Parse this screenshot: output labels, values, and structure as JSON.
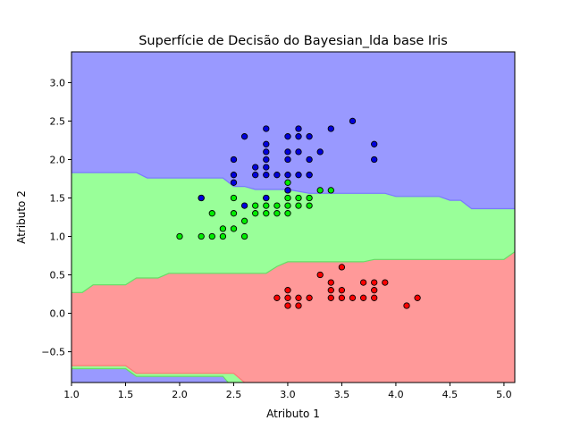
{
  "chart_data": {
    "type": "scatter",
    "title": "Superfície de Decisão do Bayesian_lda base Iris",
    "xlabel": "Atributo 1",
    "ylabel": "Atributo 2",
    "xlim": [
      1.0,
      5.1
    ],
    "ylim": [
      -0.9,
      3.4
    ],
    "xticks": [
      "1.0",
      "1.5",
      "2.0",
      "2.5",
      "3.0",
      "3.5",
      "4.0",
      "4.5",
      "5.0"
    ],
    "yticks": [
      "−0.5",
      "0.0",
      "0.5",
      "1.0",
      "1.5",
      "2.0",
      "2.5",
      "3.0"
    ],
    "region_colors": {
      "red": "#ff9999",
      "green": "#99ff99",
      "blue": "#9999ff"
    },
    "boundaries": {
      "blue_green_upper": [
        [
          1.0,
          1.83
        ],
        [
          1.6,
          1.83
        ],
        [
          1.7,
          1.76
        ],
        [
          2.4,
          1.76
        ],
        [
          2.5,
          1.65
        ],
        [
          2.6,
          1.65
        ],
        [
          2.7,
          1.61
        ],
        [
          3.0,
          1.61
        ],
        [
          3.2,
          1.56
        ],
        [
          3.9,
          1.56
        ],
        [
          4.0,
          1.52
        ],
        [
          4.4,
          1.52
        ],
        [
          4.5,
          1.47
        ],
        [
          4.6,
          1.47
        ],
        [
          4.7,
          1.36
        ],
        [
          5.1,
          1.36
        ]
      ],
      "green_red_upper": [
        [
          1.0,
          0.27
        ],
        [
          1.1,
          0.27
        ],
        [
          1.2,
          0.37
        ],
        [
          1.5,
          0.37
        ],
        [
          1.6,
          0.46
        ],
        [
          1.8,
          0.46
        ],
        [
          1.9,
          0.52
        ],
        [
          2.8,
          0.52
        ],
        [
          2.9,
          0.61
        ],
        [
          3.0,
          0.67
        ],
        [
          3.7,
          0.67
        ],
        [
          3.8,
          0.7
        ],
        [
          5.0,
          0.7
        ],
        [
          5.1,
          0.8
        ],
        [
          5.1,
          0.82
        ]
      ],
      "red_green_lower": [
        [
          1.0,
          -0.68
        ],
        [
          1.5,
          -0.68
        ],
        [
          1.6,
          -0.78
        ],
        [
          2.5,
          -0.78
        ],
        [
          2.6,
          -0.9
        ]
      ],
      "green_blue_lower": [
        [
          1.0,
          -0.72
        ],
        [
          1.5,
          -0.72
        ],
        [
          1.6,
          -0.82
        ],
        [
          2.4,
          -0.82
        ],
        [
          2.45,
          -0.9
        ]
      ]
    },
    "series": [
      {
        "color": "#ff0000",
        "points": [
          [
            2.9,
            0.2
          ],
          [
            3.0,
            0.1
          ],
          [
            3.0,
            0.2
          ],
          [
            3.0,
            0.3
          ],
          [
            3.1,
            0.1
          ],
          [
            3.1,
            0.2
          ],
          [
            3.2,
            0.2
          ],
          [
            3.3,
            0.5
          ],
          [
            3.4,
            0.2
          ],
          [
            3.4,
            0.3
          ],
          [
            3.4,
            0.4
          ],
          [
            3.5,
            0.2
          ],
          [
            3.5,
            0.3
          ],
          [
            3.5,
            0.6
          ],
          [
            3.6,
            0.2
          ],
          [
            3.7,
            0.2
          ],
          [
            3.7,
            0.4
          ],
          [
            3.8,
            0.2
          ],
          [
            3.8,
            0.3
          ],
          [
            3.8,
            0.4
          ],
          [
            3.9,
            0.4
          ],
          [
            4.1,
            0.1
          ],
          [
            4.2,
            0.2
          ]
        ]
      },
      {
        "color": "#00ee00",
        "points": [
          [
            2.0,
            1.0
          ],
          [
            2.2,
            1.0
          ],
          [
            2.2,
            1.5
          ],
          [
            2.3,
            1.0
          ],
          [
            2.3,
            1.3
          ],
          [
            2.4,
            1.0
          ],
          [
            2.4,
            1.1
          ],
          [
            2.5,
            1.1
          ],
          [
            2.5,
            1.3
          ],
          [
            2.5,
            1.5
          ],
          [
            2.6,
            1.0
          ],
          [
            2.6,
            1.2
          ],
          [
            2.7,
            1.3
          ],
          [
            2.7,
            1.4
          ],
          [
            2.8,
            1.3
          ],
          [
            2.8,
            1.4
          ],
          [
            2.8,
            1.5
          ],
          [
            2.9,
            1.3
          ],
          [
            2.9,
            1.4
          ],
          [
            3.0,
            1.3
          ],
          [
            3.0,
            1.4
          ],
          [
            3.0,
            1.5
          ],
          [
            3.0,
            1.6
          ],
          [
            3.0,
            1.7
          ],
          [
            3.1,
            1.4
          ],
          [
            3.1,
            1.5
          ],
          [
            3.2,
            1.4
          ],
          [
            3.2,
            1.5
          ],
          [
            3.2,
            1.8
          ],
          [
            3.3,
            1.6
          ],
          [
            3.4,
            1.6
          ]
        ]
      },
      {
        "color": "#0000dd",
        "points": [
          [
            2.2,
            1.5
          ],
          [
            2.5,
            1.7
          ],
          [
            2.5,
            1.8
          ],
          [
            2.5,
            2.0
          ],
          [
            2.6,
            1.4
          ],
          [
            2.6,
            2.3
          ],
          [
            2.7,
            1.8
          ],
          [
            2.7,
            1.9
          ],
          [
            2.8,
            1.5
          ],
          [
            2.8,
            1.8
          ],
          [
            2.8,
            1.9
          ],
          [
            2.8,
            2.0
          ],
          [
            2.8,
            2.1
          ],
          [
            2.8,
            2.2
          ],
          [
            2.8,
            2.4
          ],
          [
            2.9,
            1.8
          ],
          [
            3.0,
            1.6
          ],
          [
            3.0,
            1.8
          ],
          [
            3.0,
            2.0
          ],
          [
            3.0,
            2.1
          ],
          [
            3.0,
            2.3
          ],
          [
            3.1,
            1.8
          ],
          [
            3.1,
            2.1
          ],
          [
            3.1,
            2.3
          ],
          [
            3.1,
            2.4
          ],
          [
            3.2,
            1.8
          ],
          [
            3.2,
            2.0
          ],
          [
            3.2,
            2.3
          ],
          [
            3.3,
            2.1
          ],
          [
            3.4,
            2.4
          ],
          [
            3.6,
            2.5
          ],
          [
            3.8,
            2.0
          ],
          [
            3.8,
            2.2
          ]
        ]
      }
    ]
  }
}
